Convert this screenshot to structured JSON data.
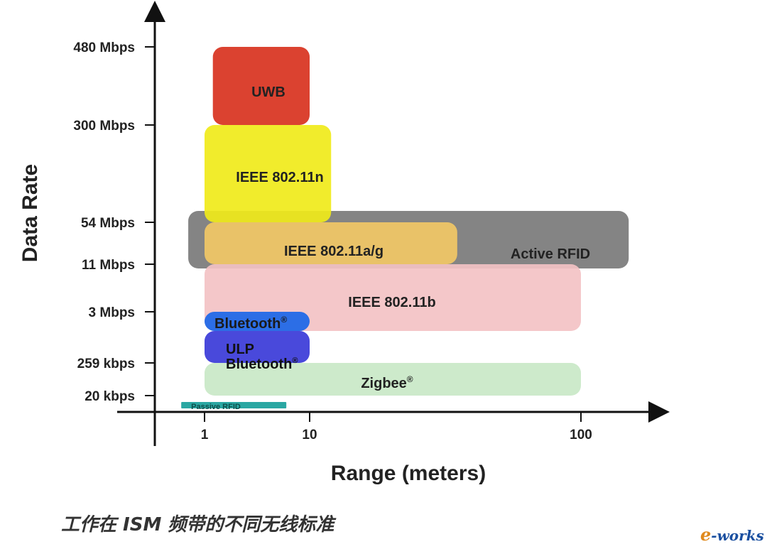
{
  "chart_data": {
    "type": "range-region",
    "xlabel": "Range (meters)",
    "ylabel": "Data Rate",
    "x_ticks": [
      {
        "value": 1,
        "label": "1"
      },
      {
        "value": 10,
        "label": "10"
      },
      {
        "value": 100,
        "label": "100"
      }
    ],
    "y_ticks": [
      {
        "value": 0.02,
        "label": "20 kbps"
      },
      {
        "value": 0.259,
        "label": "259 kbps"
      },
      {
        "value": 3,
        "label": "3 Mbps"
      },
      {
        "value": 11,
        "label": "11 Mbps"
      },
      {
        "value": 54,
        "label": "54 Mbps"
      },
      {
        "value": 300,
        "label": "300 Mbps"
      },
      {
        "value": 480,
        "label": "480 Mbps"
      }
    ],
    "regions": [
      {
        "name": "Active RFID",
        "label": "Active RFID",
        "color": "#7a7a7a",
        "range_m": [
          0.7,
          150
        ],
        "rate_mbps": [
          9,
          60
        ]
      },
      {
        "name": "UWB",
        "label": "UWB",
        "color": "#d8321e",
        "range_m": [
          1.2,
          10
        ],
        "rate_mbps": [
          300,
          480
        ]
      },
      {
        "name": "IEEE 802.11n",
        "label": "IEEE 802.11n",
        "color": "#f0ea1a",
        "range_m": [
          1,
          12
        ],
        "rate_mbps": [
          54,
          300
        ]
      },
      {
        "name": "IEEE 802.11a/g",
        "label": "IEEE 802.11a/g",
        "color": "#f2c866",
        "range_m": [
          1,
          35
        ],
        "rate_mbps": [
          11,
          54
        ]
      },
      {
        "name": "IEEE 802.11b",
        "label": "IEEE 802.11b",
        "color": "#f3c2c4",
        "range_m": [
          1,
          100
        ],
        "rate_mbps": [
          0.6,
          11
        ]
      },
      {
        "name": "Zigbee",
        "label": "Zigbee",
        "sup": "®",
        "color": "#c4e6c2",
        "range_m": [
          1,
          100
        ],
        "rate_mbps": [
          0.02,
          0.259
        ]
      },
      {
        "name": "Bluetooth",
        "label": "Bluetooth",
        "sup": "®",
        "color": "#1a66e8",
        "range_m": [
          1,
          10
        ],
        "rate_mbps": [
          0.6,
          3
        ]
      },
      {
        "name": "ULP Bluetooth",
        "label": "ULP Bluetooth",
        "label_lines": [
          "ULP",
          "Bluetooth"
        ],
        "sup": "®",
        "color": "#3a3ad8",
        "range_m": [
          1,
          10
        ],
        "rate_mbps": [
          0.259,
          0.6
        ]
      },
      {
        "name": "Passive RFID",
        "label": "Passive RFID",
        "color": "#18a09a",
        "range_m": [
          0.6,
          6
        ],
        "rate_mbps": [
          0.012,
          0.016
        ]
      }
    ],
    "grid": false,
    "legend": "none"
  },
  "caption": "工作在 ISM 频带的不同无线标准",
  "watermark": "e-works",
  "watermark_parts": {
    "first": "e",
    "rest": "-works"
  }
}
